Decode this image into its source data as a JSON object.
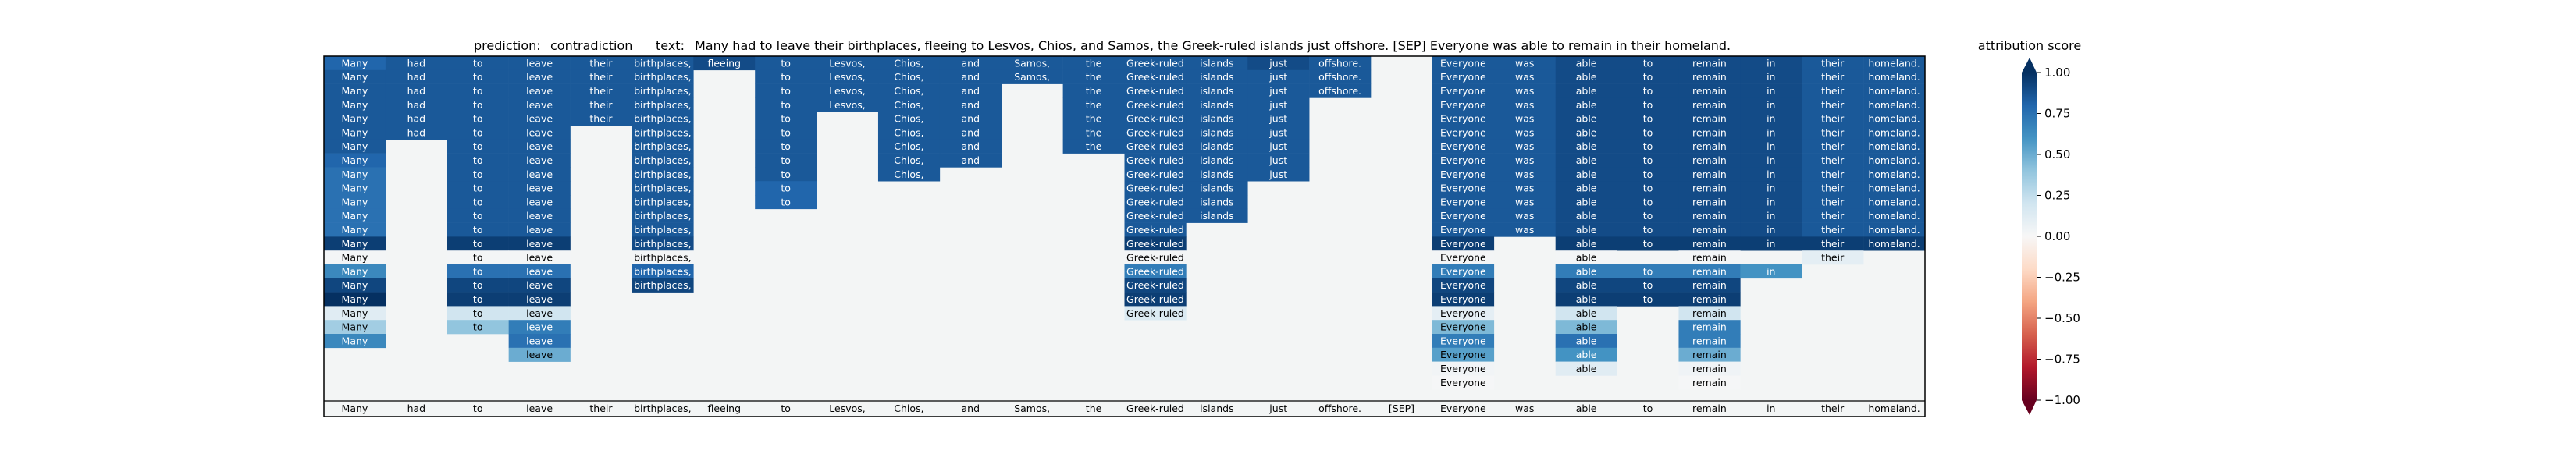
{
  "header": {
    "prediction_label": "prediction:",
    "prediction_value": "contradiction",
    "text_label": "text:",
    "text_value": "Many had to leave their birthplaces, fleeing to Lesvos, Chios, and Samos, the Greek-ruled islands just offshore. [SEP] Everyone was able to remain in their homeland."
  },
  "colorbar": {
    "title": "attribution score",
    "ticks": [
      "1.00",
      "0.75",
      "0.50",
      "0.25",
      "0.00",
      "−0.25",
      "−0.50",
      "−0.75",
      "−1.00"
    ],
    "tick_values": [
      1.0,
      0.75,
      0.5,
      0.25,
      0.0,
      -0.25,
      -0.5,
      -0.75,
      -1.0
    ],
    "colors": [
      "#67001f",
      "#b2182b",
      "#d6604d",
      "#f4a582",
      "#fddbc7",
      "#f7f7f7",
      "#d1e5f0",
      "#92c5de",
      "#4393c3",
      "#2166ac",
      "#053061"
    ]
  },
  "chart_data": {
    "type": "heatmap",
    "title": "prediction:  contradiction     text:  Many had to leave their birthplaces, fleeing to Lesvos, Chios, and Samos, the Greek-ruled islands just offshore. [SEP] Everyone was able to remain in their homeland.",
    "xlabel": "",
    "ylabel": "",
    "tokens": [
      "Many",
      "had",
      "to",
      "leave",
      "their",
      "birthplaces,",
      "fleeing",
      "to",
      "Lesvos,",
      "Chios,",
      "and",
      "Samos,",
      "the",
      "Greek-ruled",
      "islands",
      "just",
      "offshore.",
      "[SEP]",
      "Everyone",
      "was",
      "able",
      "to",
      "remain",
      "in",
      "their",
      "homeland."
    ],
    "color_range": [
      -1.0,
      1.0
    ],
    "colormap": "RdBu",
    "rows": [
      [
        0.8,
        0.85,
        0.85,
        0.85,
        0.85,
        0.85,
        0.9,
        0.85,
        0.85,
        0.85,
        0.85,
        0.85,
        0.85,
        0.85,
        0.85,
        0.9,
        0.85,
        null,
        0.85,
        0.85,
        0.9,
        0.9,
        0.9,
        0.9,
        0.85,
        0.85
      ],
      [
        0.85,
        0.85,
        0.85,
        0.85,
        0.85,
        0.85,
        null,
        0.85,
        0.85,
        0.85,
        0.85,
        0.85,
        0.85,
        0.85,
        0.85,
        0.85,
        0.85,
        null,
        0.85,
        0.85,
        0.9,
        0.9,
        0.9,
        0.9,
        0.85,
        0.85
      ],
      [
        0.85,
        0.85,
        0.85,
        0.85,
        0.85,
        0.85,
        null,
        0.85,
        0.85,
        0.85,
        0.85,
        null,
        0.85,
        0.85,
        0.85,
        0.85,
        0.85,
        null,
        0.85,
        0.85,
        0.9,
        0.9,
        0.9,
        0.9,
        0.85,
        0.85
      ],
      [
        0.85,
        0.85,
        0.85,
        0.85,
        0.85,
        0.85,
        null,
        0.85,
        0.85,
        0.85,
        0.85,
        null,
        0.85,
        0.85,
        0.85,
        0.85,
        null,
        null,
        0.85,
        0.85,
        0.9,
        0.9,
        0.9,
        0.9,
        0.85,
        0.85
      ],
      [
        0.85,
        0.85,
        0.85,
        0.85,
        0.85,
        0.85,
        null,
        0.85,
        null,
        0.85,
        0.85,
        null,
        0.85,
        0.85,
        0.85,
        0.85,
        null,
        null,
        0.85,
        0.85,
        0.9,
        0.9,
        0.9,
        0.9,
        0.85,
        0.85
      ],
      [
        0.85,
        0.85,
        0.85,
        0.85,
        null,
        0.85,
        null,
        0.85,
        null,
        0.85,
        0.85,
        null,
        0.85,
        0.85,
        0.85,
        0.85,
        null,
        null,
        0.85,
        0.85,
        0.9,
        0.9,
        0.9,
        0.9,
        0.85,
        0.85
      ],
      [
        0.85,
        null,
        0.85,
        0.85,
        null,
        0.85,
        null,
        0.85,
        null,
        0.85,
        0.85,
        null,
        0.85,
        0.85,
        0.85,
        0.85,
        null,
        null,
        0.85,
        0.85,
        0.9,
        0.9,
        0.9,
        0.9,
        0.85,
        0.85
      ],
      [
        0.8,
        null,
        0.85,
        0.85,
        null,
        0.85,
        null,
        0.85,
        null,
        0.85,
        0.85,
        null,
        null,
        0.85,
        0.85,
        0.85,
        null,
        null,
        0.85,
        0.85,
        0.9,
        0.9,
        0.9,
        0.9,
        0.85,
        0.85
      ],
      [
        0.75,
        null,
        0.85,
        0.85,
        null,
        0.85,
        null,
        0.85,
        null,
        0.85,
        null,
        null,
        null,
        0.85,
        0.85,
        0.85,
        null,
        null,
        0.85,
        0.85,
        0.9,
        0.9,
        0.9,
        0.9,
        0.85,
        0.85
      ],
      [
        0.75,
        null,
        0.85,
        0.85,
        null,
        0.85,
        null,
        0.8,
        null,
        null,
        null,
        null,
        null,
        0.85,
        0.85,
        null,
        null,
        null,
        0.85,
        0.85,
        0.9,
        0.9,
        0.9,
        0.9,
        0.85,
        0.85
      ],
      [
        0.75,
        null,
        0.85,
        0.85,
        null,
        0.85,
        null,
        0.8,
        null,
        null,
        null,
        null,
        null,
        0.85,
        0.85,
        null,
        null,
        null,
        0.85,
        0.85,
        0.9,
        0.9,
        0.9,
        0.9,
        0.85,
        0.85
      ],
      [
        0.75,
        null,
        0.85,
        0.85,
        null,
        0.85,
        null,
        null,
        null,
        null,
        null,
        null,
        null,
        0.85,
        0.85,
        null,
        null,
        null,
        0.85,
        0.85,
        0.9,
        0.9,
        0.9,
        0.9,
        0.85,
        0.85
      ],
      [
        0.75,
        null,
        0.85,
        0.85,
        null,
        0.85,
        null,
        null,
        null,
        null,
        null,
        null,
        null,
        0.85,
        null,
        null,
        null,
        null,
        0.85,
        0.85,
        0.9,
        0.9,
        0.9,
        0.9,
        0.85,
        0.85
      ],
      [
        0.95,
        null,
        0.95,
        0.95,
        null,
        0.9,
        null,
        null,
        null,
        null,
        null,
        null,
        null,
        0.95,
        null,
        null,
        null,
        null,
        0.95,
        null,
        0.95,
        0.95,
        0.95,
        0.95,
        0.95,
        0.95
      ],
      [
        0.02,
        null,
        0.02,
        0.02,
        null,
        0.02,
        null,
        null,
        null,
        null,
        null,
        null,
        null,
        0.02,
        null,
        null,
        null,
        null,
        0.02,
        null,
        0.02,
        null,
        0.02,
        null,
        0.1,
        null
      ],
      [
        0.65,
        null,
        0.75,
        0.75,
        null,
        0.8,
        null,
        null,
        null,
        null,
        null,
        null,
        null,
        0.7,
        null,
        null,
        null,
        null,
        0.7,
        null,
        0.7,
        0.7,
        0.7,
        0.6,
        null,
        null
      ],
      [
        0.92,
        null,
        0.92,
        0.92,
        null,
        0.92,
        null,
        null,
        null,
        null,
        null,
        null,
        null,
        0.92,
        null,
        null,
        null,
        null,
        0.92,
        null,
        0.92,
        0.92,
        0.92,
        null,
        null,
        null
      ],
      [
        1.0,
        null,
        0.95,
        0.95,
        null,
        null,
        null,
        null,
        null,
        null,
        null,
        null,
        null,
        0.95,
        null,
        null,
        null,
        null,
        0.95,
        null,
        0.95,
        0.95,
        0.95,
        null,
        null,
        null
      ],
      [
        0.12,
        null,
        0.2,
        0.2,
        null,
        null,
        null,
        null,
        null,
        null,
        null,
        null,
        null,
        0.15,
        null,
        null,
        null,
        null,
        0.1,
        null,
        0.2,
        null,
        0.2,
        null,
        null,
        null
      ],
      [
        0.35,
        null,
        0.4,
        0.7,
        null,
        null,
        null,
        null,
        null,
        null,
        null,
        null,
        null,
        null,
        null,
        null,
        null,
        null,
        0.45,
        null,
        0.45,
        null,
        0.7,
        null,
        null,
        null
      ],
      [
        0.65,
        null,
        null,
        0.75,
        null,
        null,
        null,
        null,
        null,
        null,
        null,
        null,
        null,
        null,
        null,
        null,
        null,
        null,
        0.7,
        null,
        0.75,
        null,
        0.7,
        null,
        null,
        null
      ],
      [
        null,
        null,
        null,
        0.5,
        null,
        null,
        null,
        null,
        null,
        null,
        null,
        null,
        null,
        null,
        null,
        null,
        null,
        null,
        0.55,
        null,
        0.6,
        null,
        0.5,
        null,
        null,
        null
      ],
      [
        null,
        null,
        null,
        null,
        null,
        null,
        null,
        null,
        null,
        null,
        null,
        null,
        null,
        null,
        null,
        null,
        null,
        null,
        0.03,
        null,
        0.12,
        null,
        0.04,
        null,
        null,
        null
      ],
      [
        null,
        null,
        null,
        null,
        null,
        null,
        null,
        null,
        null,
        null,
        null,
        null,
        null,
        null,
        null,
        null,
        null,
        null,
        0.01,
        null,
        null,
        null,
        0.01,
        null,
        null,
        null
      ]
    ]
  }
}
